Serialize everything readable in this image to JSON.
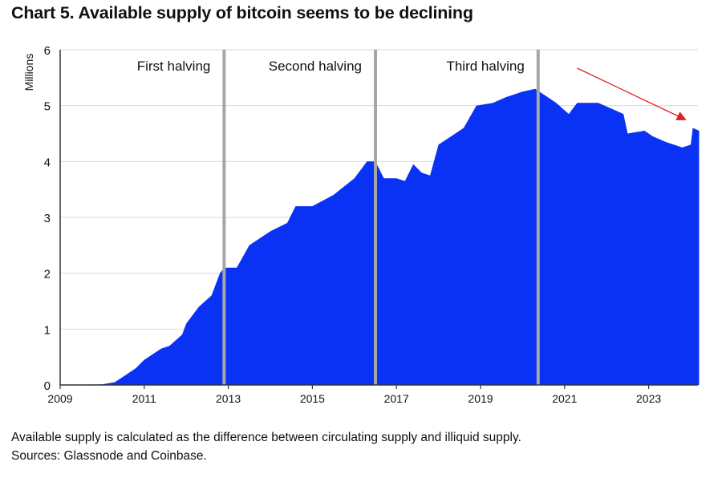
{
  "chart_data": {
    "type": "area",
    "title": "Chart 5. Available supply of bitcoin seems to be declining",
    "ylabel": "Millions",
    "xlabel": "",
    "xlim": [
      2009,
      2024.2
    ],
    "ylim": [
      0,
      6
    ],
    "x_ticks": [
      "2009",
      "2011",
      "2013",
      "2015",
      "2017",
      "2019",
      "2021",
      "2023"
    ],
    "y_ticks": [
      "0",
      "1",
      "2",
      "3",
      "4",
      "5",
      "6"
    ],
    "grid": true,
    "fill_color": "#0a32f5",
    "halving_line_color": "#a6a6a6",
    "halvings": [
      {
        "label": "First halving",
        "x": 2012.9
      },
      {
        "label": "Second halving",
        "x": 2016.5
      },
      {
        "label": "Third halving",
        "x": 2020.37
      }
    ],
    "annotation_arrow": {
      "color": "#e02020",
      "from": [
        2021.3,
        5.67
      ],
      "to": [
        2023.9,
        4.74
      ]
    },
    "x": [
      2009.0,
      2010.0,
      2010.3,
      2010.5,
      2010.8,
      2011.0,
      2011.4,
      2011.6,
      2011.9,
      2012.0,
      2012.3,
      2012.6,
      2012.8,
      2012.9,
      2013.2,
      2013.5,
      2014.0,
      2014.4,
      2014.6,
      2015.0,
      2015.5,
      2016.0,
      2016.3,
      2016.5,
      2016.7,
      2017.0,
      2017.2,
      2017.4,
      2017.6,
      2017.8,
      2018.0,
      2018.3,
      2018.6,
      2018.9,
      2019.3,
      2019.6,
      2020.0,
      2020.3,
      2020.5,
      2020.8,
      2021.1,
      2021.3,
      2021.8,
      2022.1,
      2022.4,
      2022.5,
      2022.9,
      2023.1,
      2023.4,
      2023.8,
      2024.0,
      2024.05,
      2024.2
    ],
    "values": [
      0,
      0.01,
      0.05,
      0.15,
      0.3,
      0.45,
      0.65,
      0.7,
      0.9,
      1.1,
      1.4,
      1.6,
      2.0,
      2.1,
      2.1,
      2.5,
      2.75,
      2.9,
      3.2,
      3.2,
      3.4,
      3.7,
      4.0,
      4.0,
      3.7,
      3.7,
      3.65,
      3.95,
      3.8,
      3.75,
      4.3,
      4.45,
      4.6,
      5.0,
      5.05,
      5.15,
      5.25,
      5.3,
      5.2,
      5.05,
      4.85,
      5.05,
      5.05,
      4.95,
      4.85,
      4.5,
      4.55,
      4.45,
      4.35,
      4.25,
      4.3,
      4.6,
      4.55
    ]
  },
  "notes": {
    "line1": "Available supply is calculated as the difference between circulating supply and illiquid supply.",
    "line2": "Sources: Glassnode and Coinbase."
  }
}
